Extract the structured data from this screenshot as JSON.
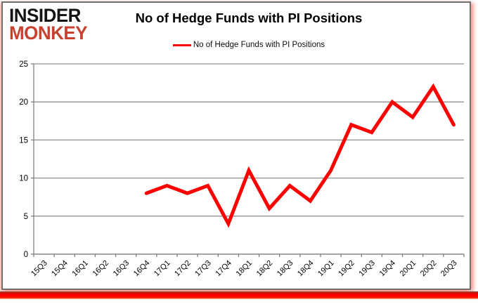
{
  "logo": {
    "line1": "INSIDER",
    "line2": "MONKEY",
    "color2": "#c8402f"
  },
  "header": {
    "title": "No of Hedge Funds with PI Positions"
  },
  "legend": {
    "label": "No of Hedge Funds with PI Positions",
    "line_color": "#ff0000"
  },
  "chart_data": {
    "type": "line",
    "title": "No of Hedge Funds with PI Positions",
    "categories": [
      "15Q3",
      "15Q4",
      "16Q1",
      "16Q2",
      "16Q3",
      "16Q4",
      "17Q1",
      "17Q2",
      "17Q3",
      "17Q4",
      "18Q1",
      "18Q2",
      "18Q3",
      "18Q4",
      "19Q1",
      "19Q2",
      "19Q3",
      "19Q4",
      "20Q1",
      "20Q2",
      "20Q3"
    ],
    "series": [
      {
        "name": "No of Hedge Funds with PI Positions",
        "color": "#ff0000",
        "values": [
          null,
          null,
          null,
          null,
          null,
          8,
          9,
          8,
          9,
          4,
          11,
          6,
          9,
          7,
          11,
          17,
          16,
          20,
          18,
          22,
          17
        ]
      }
    ],
    "xlabel": "",
    "ylabel": "",
    "ylim": [
      0,
      25
    ],
    "yticks": [
      0,
      5,
      10,
      15,
      20,
      25
    ],
    "grid": true,
    "legend_position": "top-center",
    "colors": {
      "grid": "#909090",
      "axis": "#808080",
      "tick_label": "#000000"
    }
  }
}
